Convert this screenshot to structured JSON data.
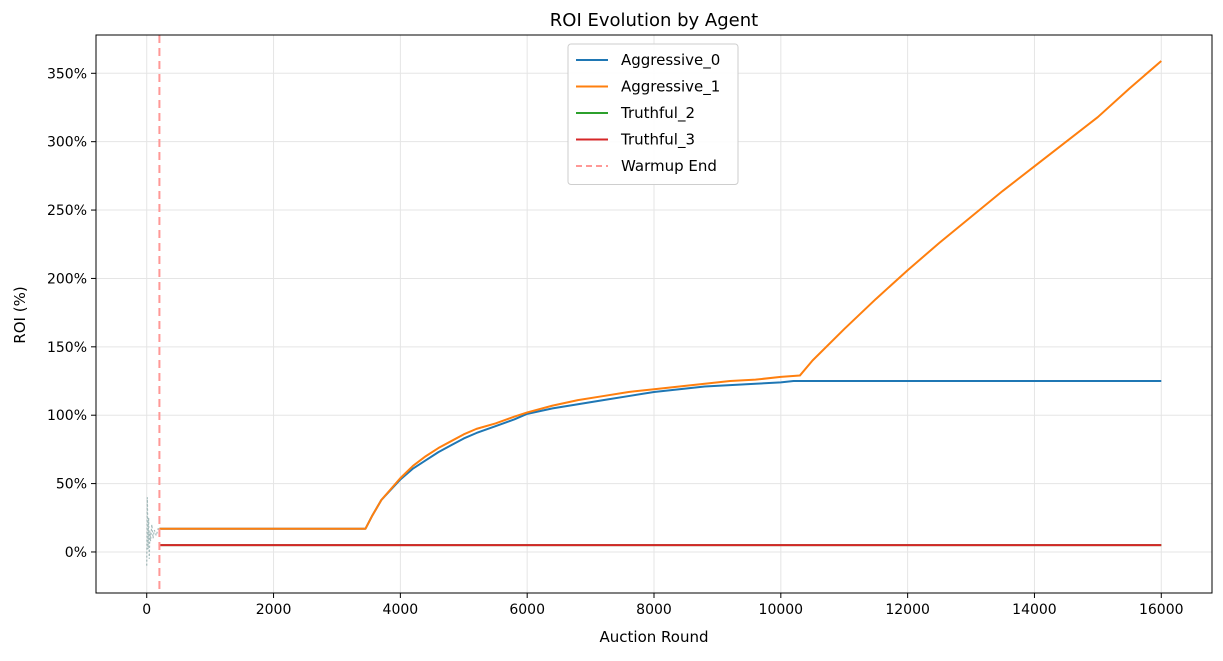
{
  "chart_data": {
    "type": "line",
    "title": "ROI Evolution by Agent",
    "xlabel": "Auction Round",
    "ylabel": "ROI (%)",
    "xlim": [
      -800,
      16800
    ],
    "ylim": [
      -30,
      378
    ],
    "xticks": [
      0,
      2000,
      4000,
      6000,
      8000,
      10000,
      12000,
      14000,
      16000
    ],
    "xtick_labels": [
      "0",
      "2000",
      "4000",
      "6000",
      "8000",
      "10000",
      "12000",
      "14000",
      "16000"
    ],
    "yticks": [
      0,
      50,
      100,
      150,
      200,
      250,
      300,
      350
    ],
    "ytick_labels": [
      "0%",
      "50%",
      "100%",
      "150%",
      "200%",
      "250%",
      "300%",
      "350%"
    ],
    "grid": true,
    "legend_position": "top-center",
    "series": [
      {
        "name": "Aggressive_0",
        "color": "#1f77b4",
        "x": [
          200,
          500,
          1000,
          2000,
          3000,
          3450,
          3550,
          3700,
          4000,
          4200,
          4400,
          4600,
          4800,
          5000,
          5200,
          5500,
          5800,
          6000,
          6400,
          6800,
          7200,
          7600,
          8000,
          8400,
          8800,
          9200,
          9600,
          10000,
          10200,
          10300,
          11000,
          12000,
          13000,
          14000,
          15000,
          16000
        ],
        "y": [
          17,
          17,
          17,
          17,
          17,
          17,
          26,
          38,
          53,
          61,
          67,
          73,
          78,
          83,
          87,
          92,
          97,
          101,
          105,
          108,
          111,
          114,
          117,
          119,
          121,
          122,
          123,
          124,
          125,
          125,
          125,
          125,
          125,
          125,
          125,
          125
        ]
      },
      {
        "name": "Aggressive_1",
        "color": "#ff7f0e",
        "x": [
          200,
          500,
          1000,
          2000,
          3000,
          3450,
          3550,
          3700,
          4000,
          4200,
          4400,
          4600,
          4800,
          5000,
          5200,
          5500,
          5800,
          6000,
          6400,
          6800,
          7200,
          7600,
          8000,
          8400,
          8800,
          9200,
          9600,
          10000,
          10300,
          10500,
          11000,
          11500,
          12000,
          12500,
          13000,
          13500,
          14000,
          14500,
          15000,
          15500,
          16000
        ],
        "y": [
          17,
          17,
          17,
          17,
          17,
          17,
          26,
          38,
          54,
          63,
          70,
          76,
          81,
          86,
          90,
          94,
          99,
          102,
          107,
          111,
          114,
          117,
          119,
          121,
          123,
          125,
          126,
          128,
          129,
          140,
          163,
          185,
          206,
          226,
          245,
          264,
          282,
          300,
          318,
          339,
          359
        ]
      },
      {
        "name": "Truthful_2",
        "color": "#2ca02c",
        "x": [
          200,
          1000,
          4000,
          8000,
          12000,
          16000
        ],
        "y": [
          5,
          5,
          5,
          5,
          5,
          5
        ]
      },
      {
        "name": "Truthful_3",
        "color": "#d62728",
        "x": [
          200,
          1000,
          4000,
          8000,
          12000,
          16000
        ],
        "y": [
          5,
          5,
          5,
          5,
          5,
          5
        ]
      }
    ],
    "warmup_line": {
      "name": "Warmup End",
      "x": 200,
      "color": "#ff9896"
    },
    "warmup_noise": {
      "color": "#7f9f9f",
      "x": [
        0,
        10,
        20,
        30,
        40,
        50,
        60,
        80,
        100,
        120,
        150,
        180,
        200
      ],
      "y": [
        -10,
        40,
        2,
        25,
        -5,
        15,
        8,
        20,
        10,
        16,
        12,
        17,
        17
      ]
    }
  }
}
